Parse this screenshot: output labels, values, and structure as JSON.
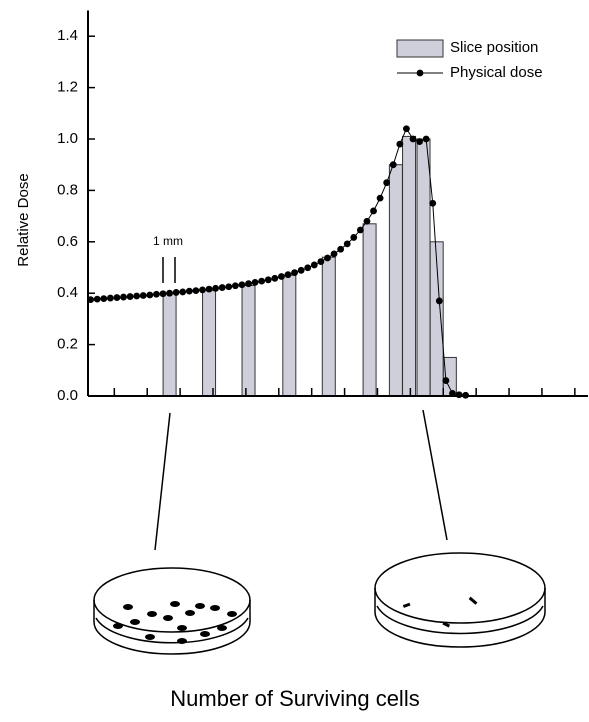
{
  "chart_data": {
    "type": "combo",
    "y_label": "Relative Dose",
    "scale_label": "1 mm",
    "caption": "Number of Surviving cells",
    "xlim": [
      0,
      38
    ],
    "xticks": [
      2,
      4.5,
      7,
      9.5,
      12,
      14.5,
      17,
      19.5,
      22,
      24.5,
      27,
      29.5,
      32,
      34.5,
      37
    ],
    "ylim": [
      0,
      1.5
    ],
    "yticks": [
      {
        "value": 0,
        "label": "0.0"
      },
      0.2,
      0.4,
      0.6,
      0.8,
      {
        "value": 1,
        "label": "1.0"
      },
      1.2,
      1.4
    ],
    "legend": "top-right",
    "series": [
      {
        "name": "Slice position",
        "type": "bar",
        "color": "#cfcfdc",
        "x": [
          6.2,
          9.2,
          12.2,
          15.3,
          18.3,
          21.4,
          23.4,
          24.4,
          25.5,
          26.5,
          27.5
        ],
        "values": [
          0.4,
          0.41,
          0.43,
          0.47,
          0.54,
          0.67,
          0.9,
          1.01,
          1.0,
          0.6,
          0.15
        ]
      },
      {
        "name": "Physical dose",
        "type": "line",
        "color": "#000000",
        "x": [
          0.2,
          0.7,
          1.2,
          1.7,
          2.2,
          2.7,
          3.2,
          3.7,
          4.2,
          4.7,
          5.2,
          5.7,
          6.2,
          6.7,
          7.2,
          7.7,
          8.2,
          8.7,
          9.2,
          9.7,
          10.2,
          10.7,
          11.2,
          11.7,
          12.2,
          12.7,
          13.2,
          13.7,
          14.2,
          14.7,
          15.2,
          15.7,
          16.2,
          16.7,
          17.2,
          17.7,
          18.2,
          18.7,
          19.2,
          19.7,
          20.2,
          20.7,
          21.2,
          21.7,
          22.2,
          22.7,
          23.2,
          23.7,
          24.2,
          24.7,
          25.2,
          25.7,
          26.2,
          26.7,
          27.2,
          27.7,
          28.2,
          28.7
        ],
        "values": [
          0.375,
          0.377,
          0.379,
          0.381,
          0.383,
          0.385,
          0.387,
          0.389,
          0.391,
          0.393,
          0.396,
          0.398,
          0.4,
          0.403,
          0.405,
          0.408,
          0.41,
          0.413,
          0.416,
          0.419,
          0.422,
          0.425,
          0.429,
          0.433,
          0.437,
          0.442,
          0.447,
          0.452,
          0.458,
          0.465,
          0.472,
          0.48,
          0.489,
          0.499,
          0.51,
          0.523,
          0.537,
          0.553,
          0.571,
          0.592,
          0.617,
          0.646,
          0.68,
          0.72,
          0.77,
          0.83,
          0.9,
          0.98,
          1.04,
          1.0,
          0.99,
          1.0,
          0.75,
          0.37,
          0.06,
          0.01,
          0.005,
          0.003
        ]
      }
    ]
  }
}
